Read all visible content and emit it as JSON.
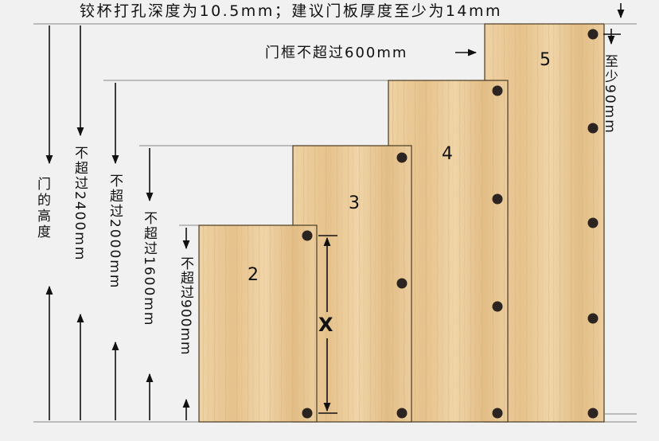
{
  "top_note": "铰杯打孔深度为10.5mm；建议门板厚度至少为14mm",
  "frame_note": "门框不超过600mm",
  "right_note": "至少90mm",
  "door_height": "门的高度",
  "limits": [
    "不超过2400mm",
    "不超过2000mm",
    "不超过1600mm",
    "不超过900mm"
  ],
  "panels": [
    "2",
    "3",
    "4",
    "5"
  ],
  "x_label": "X",
  "colors": {
    "wood": "#e9c896",
    "wood_grain": "#d9b47c",
    "hole": "#2b2420",
    "background": "#f1f1f1"
  }
}
